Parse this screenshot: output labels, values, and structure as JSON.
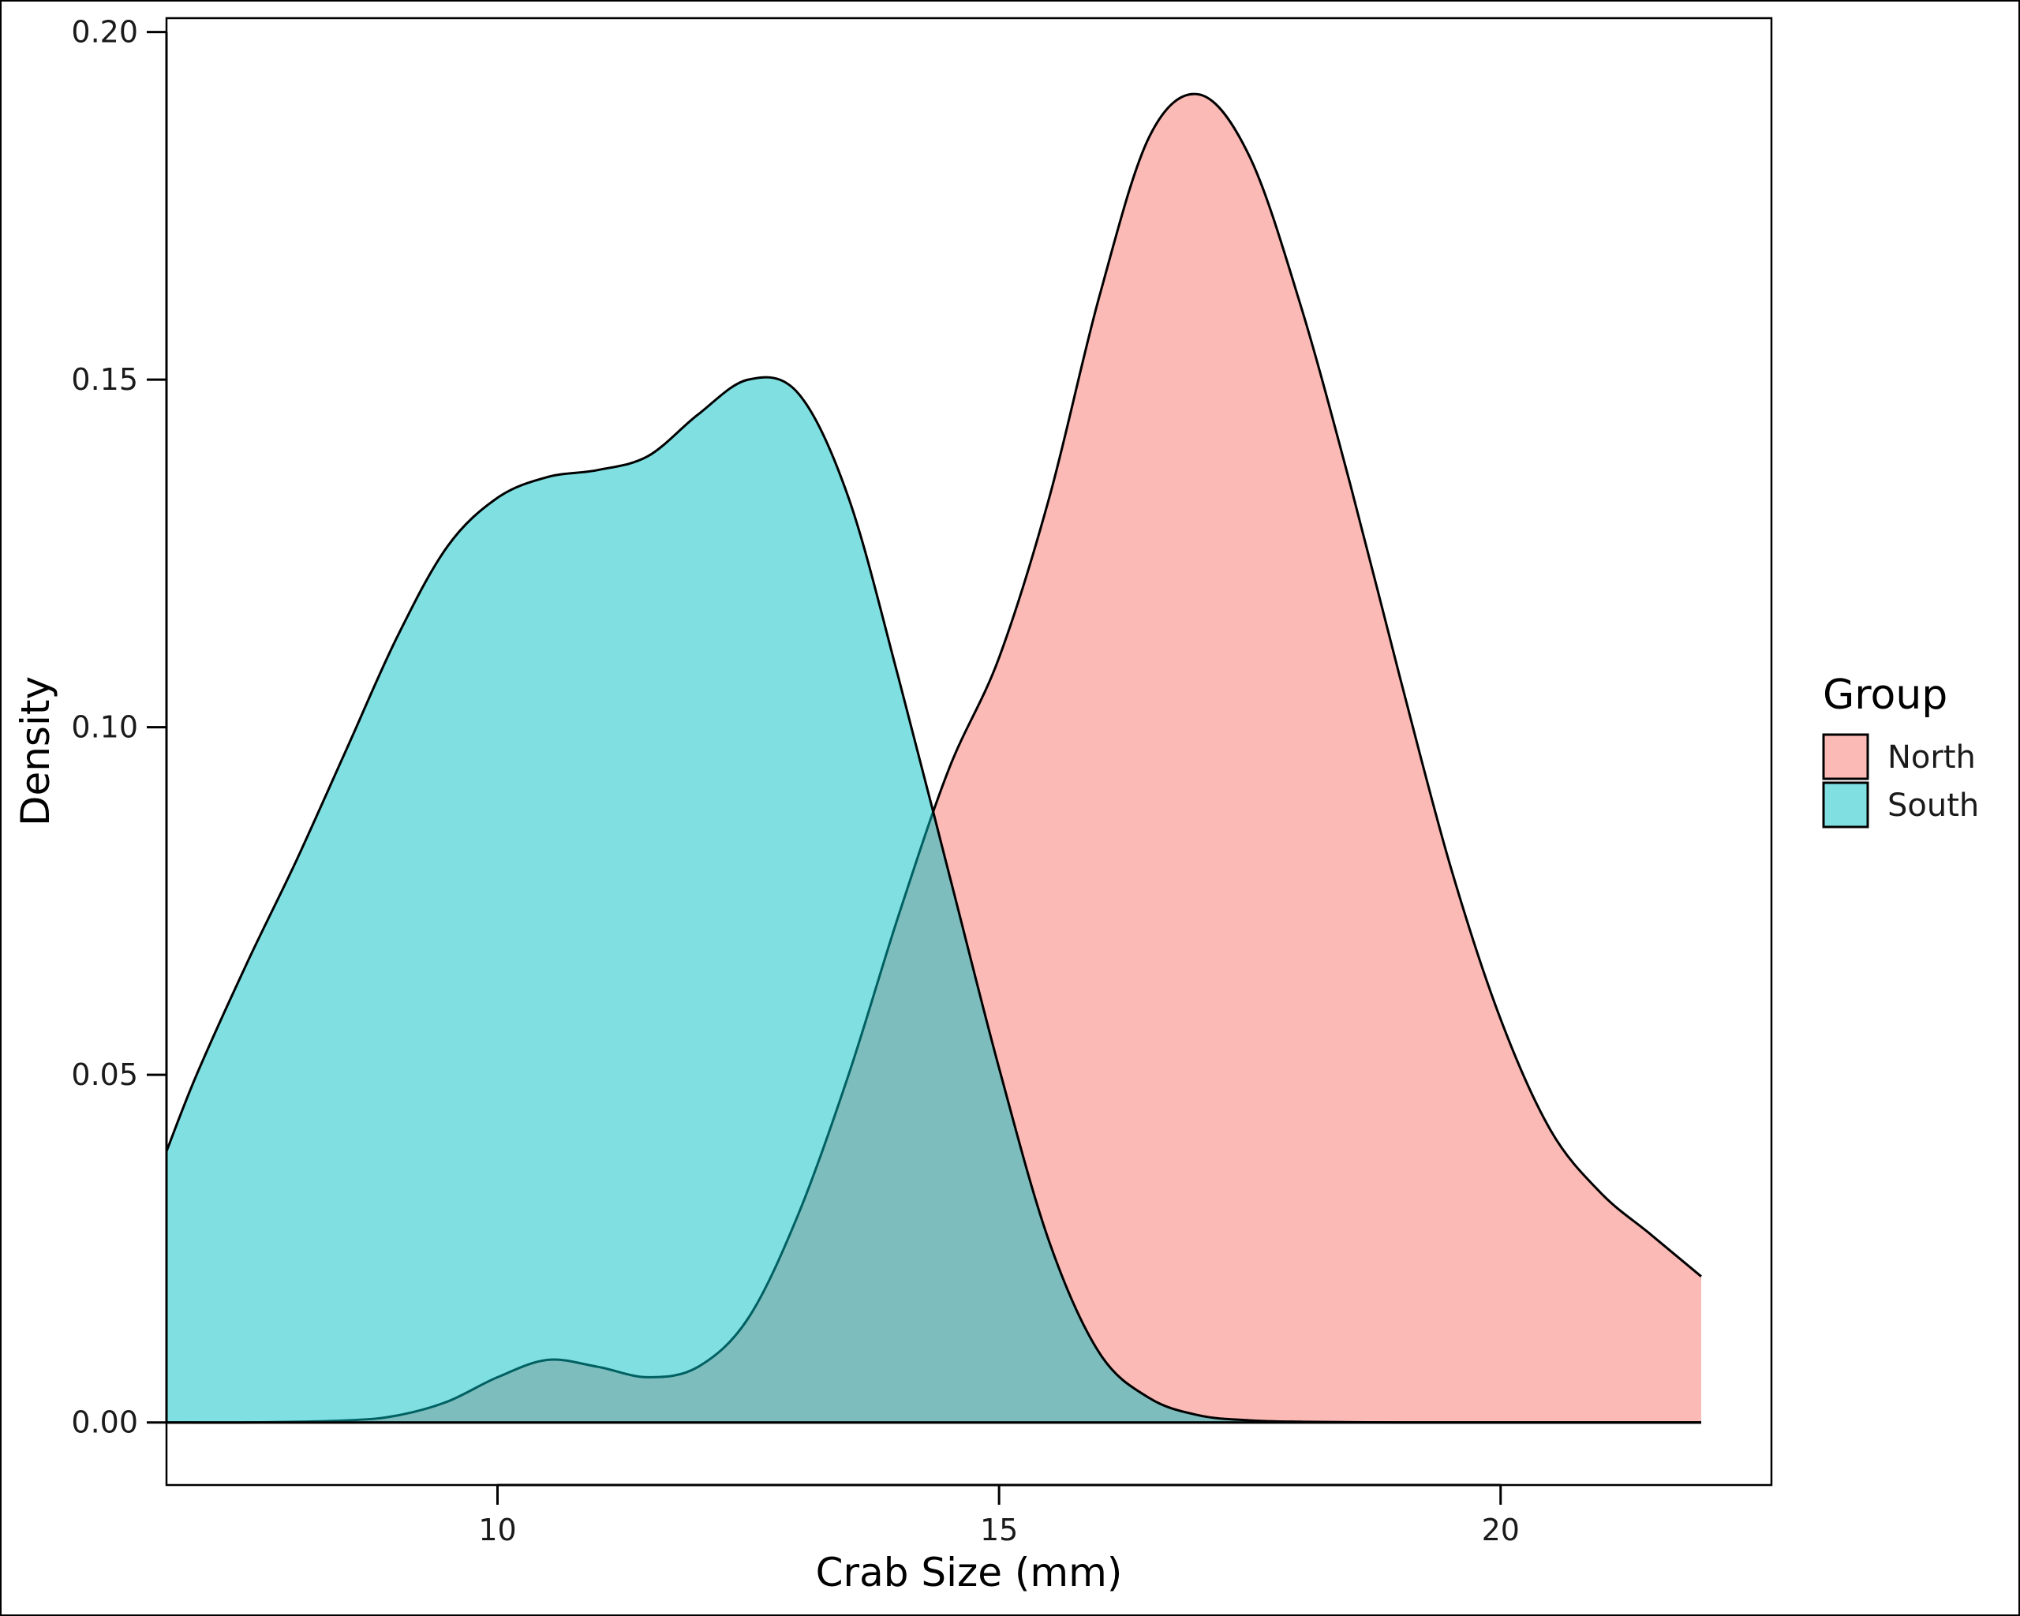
{
  "chart_data": {
    "type": "area",
    "subtype": "density",
    "xlabel": "Crab Size (mm)",
    "ylabel": "Density",
    "xlim": [
      6.7,
      22.7
    ],
    "ylim": [
      -0.009,
      0.202
    ],
    "x_ticks": [
      10,
      15,
      20
    ],
    "y_ticks": [
      0.0,
      0.05,
      0.1,
      0.15,
      0.2
    ],
    "x_tick_labels": [
      "10",
      "15",
      "20"
    ],
    "y_tick_labels": [
      "0.00",
      "0.05",
      "0.10",
      "0.15",
      "0.20"
    ],
    "grid": false,
    "legend": {
      "title": "Group",
      "placement": "right"
    },
    "series": [
      {
        "name": "North",
        "color": "#F8766D",
        "fill_alpha": 0.5,
        "points": [
          [
            6.7,
            0.0
          ],
          [
            7.5,
            0.0
          ],
          [
            8.5,
            0.0003
          ],
          [
            9.0,
            0.001
          ],
          [
            9.5,
            0.003
          ],
          [
            10.0,
            0.0065
          ],
          [
            10.5,
            0.009
          ],
          [
            11.0,
            0.008
          ],
          [
            11.5,
            0.0065
          ],
          [
            12.0,
            0.008
          ],
          [
            12.5,
            0.015
          ],
          [
            13.0,
            0.03
          ],
          [
            13.5,
            0.05
          ],
          [
            14.0,
            0.073
          ],
          [
            14.5,
            0.094
          ],
          [
            15.0,
            0.11
          ],
          [
            15.5,
            0.133
          ],
          [
            16.0,
            0.162
          ],
          [
            16.5,
            0.185
          ],
          [
            17.0,
            0.191
          ],
          [
            17.5,
            0.182
          ],
          [
            18.0,
            0.161
          ],
          [
            18.5,
            0.135
          ],
          [
            19.0,
            0.107
          ],
          [
            19.5,
            0.08
          ],
          [
            20.0,
            0.058
          ],
          [
            20.5,
            0.042
          ],
          [
            21.0,
            0.033
          ],
          [
            21.5,
            0.027
          ],
          [
            22.0,
            0.021
          ]
        ]
      },
      {
        "name": "South",
        "color": "#00BFC4",
        "fill_alpha": 0.5,
        "points": [
          [
            6.7,
            0.039
          ],
          [
            7.0,
            0.05
          ],
          [
            7.5,
            0.066
          ],
          [
            8.0,
            0.081
          ],
          [
            8.5,
            0.097
          ],
          [
            9.0,
            0.113
          ],
          [
            9.5,
            0.126
          ],
          [
            10.0,
            0.133
          ],
          [
            10.5,
            0.136
          ],
          [
            11.0,
            0.137
          ],
          [
            11.5,
            0.139
          ],
          [
            12.0,
            0.145
          ],
          [
            12.5,
            0.15
          ],
          [
            13.0,
            0.148
          ],
          [
            13.5,
            0.133
          ],
          [
            14.0,
            0.107
          ],
          [
            14.5,
            0.079
          ],
          [
            15.0,
            0.051
          ],
          [
            15.5,
            0.026
          ],
          [
            16.0,
            0.01
          ],
          [
            16.5,
            0.0035
          ],
          [
            17.0,
            0.001
          ],
          [
            17.5,
            0.0003
          ],
          [
            18.0,
            0.0001
          ],
          [
            19.0,
            0.0
          ],
          [
            20.0,
            0.0
          ],
          [
            21.0,
            0.0
          ],
          [
            22.0,
            0.0
          ]
        ]
      }
    ]
  }
}
